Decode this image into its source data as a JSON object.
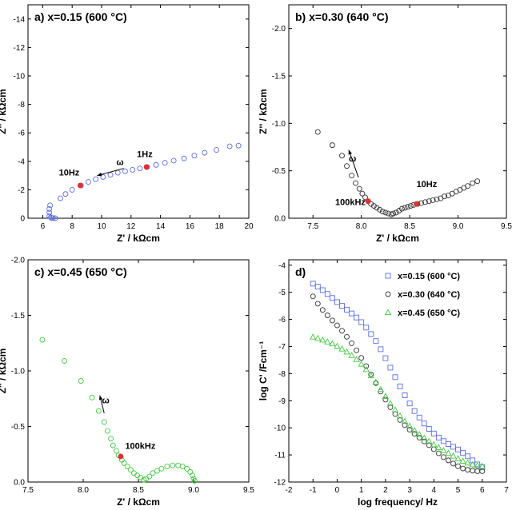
{
  "chart_data": [
    {
      "type": "scatter",
      "id": "a",
      "title": "a) x=0.15  (600 °C)",
      "xlabel": "Z' / kΩcm",
      "ylabel": "Z'' / kΩcm",
      "xlim": [
        5,
        20
      ],
      "ylim": [
        0,
        -15
      ],
      "xticks": [
        6,
        8,
        10,
        12,
        14,
        16,
        18,
        20
      ],
      "yticks": [
        0,
        -2,
        -4,
        -6,
        -8,
        -10,
        -12,
        -14
      ],
      "color": "#5b6ee1",
      "marker": "circle",
      "points": [
        [
          6.45,
          -0.15
        ],
        [
          6.45,
          -0.4
        ],
        [
          6.45,
          -0.65
        ],
        [
          6.5,
          -0.9
        ],
        [
          6.55,
          -0.05
        ],
        [
          6.6,
          -0.02
        ],
        [
          6.7,
          -0.01
        ],
        [
          6.85,
          0.0
        ],
        [
          7.2,
          -1.4
        ],
        [
          7.55,
          -1.7
        ],
        [
          8.0,
          -2.0
        ],
        [
          8.6,
          -2.3
        ],
        [
          9.1,
          -2.55
        ],
        [
          9.6,
          -2.75
        ],
        [
          10.1,
          -2.9
        ],
        [
          10.6,
          -3.05
        ],
        [
          11.1,
          -3.2
        ],
        [
          11.6,
          -3.3
        ],
        [
          12.1,
          -3.4
        ],
        [
          12.6,
          -3.5
        ],
        [
          13.1,
          -3.6
        ],
        [
          13.7,
          -3.75
        ],
        [
          14.3,
          -3.9
        ],
        [
          14.9,
          -4.05
        ],
        [
          15.6,
          -4.2
        ],
        [
          16.3,
          -4.4
        ],
        [
          17.0,
          -4.6
        ],
        [
          17.8,
          -4.8
        ],
        [
          18.7,
          -5.05
        ],
        [
          19.3,
          -5.1
        ]
      ],
      "highlighted": [
        [
          8.55,
          -2.3
        ],
        [
          13.05,
          -3.6
        ]
      ],
      "annotations": [
        {
          "text": "10Hz",
          "x": 7.1,
          "y": -3.0
        },
        {
          "text": "1Hz",
          "x": 12.4,
          "y": -4.3
        },
        {
          "text": "ω",
          "x": 11.0,
          "y": -3.75
        }
      ],
      "arrow": {
        "from": [
          11.5,
          -3.5
        ],
        "to": [
          9.7,
          -3.0
        ]
      }
    },
    {
      "type": "scatter",
      "id": "b",
      "title": "b) x=0.30  (640 °C)",
      "xlabel": "Z' / kΩcm",
      "ylabel": "Z'' / kΩcm",
      "xlim": [
        7.25,
        9.5
      ],
      "ylim": [
        0,
        -2.25
      ],
      "xticks": [
        7.5,
        8.0,
        8.5,
        9.0,
        9.5
      ],
      "xticklabels": [
        "7.5",
        "8.0",
        "8.5",
        "9.0",
        "9.5"
      ],
      "yticks": [
        0.0,
        -0.5,
        -1.0,
        -1.5,
        -2.0
      ],
      "yticklabels": [
        "0.0",
        "-0.5",
        "-1.0",
        "-1.5",
        "-2.0"
      ],
      "color": "#333333",
      "marker": "circle",
      "points": [
        [
          7.55,
          -0.91
        ],
        [
          7.7,
          -0.77
        ],
        [
          7.8,
          -0.66
        ],
        [
          7.85,
          -0.55
        ],
        [
          7.9,
          -0.45
        ],
        [
          7.94,
          -0.37
        ],
        [
          7.98,
          -0.31
        ],
        [
          8.01,
          -0.26
        ],
        [
          8.04,
          -0.22
        ],
        [
          8.07,
          -0.18
        ],
        [
          8.1,
          -0.15
        ],
        [
          8.13,
          -0.13
        ],
        [
          8.16,
          -0.11
        ],
        [
          8.19,
          -0.09
        ],
        [
          8.22,
          -0.07
        ],
        [
          8.25,
          -0.06
        ],
        [
          8.28,
          -0.05
        ],
        [
          8.31,
          -0.04
        ],
        [
          8.33,
          -0.05
        ],
        [
          8.36,
          -0.06
        ],
        [
          8.39,
          -0.08
        ],
        [
          8.42,
          -0.1
        ],
        [
          8.45,
          -0.11
        ],
        [
          8.48,
          -0.12
        ],
        [
          8.51,
          -0.13
        ],
        [
          8.54,
          -0.14
        ],
        [
          8.58,
          -0.15
        ],
        [
          8.62,
          -0.16
        ],
        [
          8.66,
          -0.17
        ],
        [
          8.7,
          -0.18
        ],
        [
          8.74,
          -0.19
        ],
        [
          8.78,
          -0.2
        ],
        [
          8.82,
          -0.21
        ],
        [
          8.86,
          -0.23
        ],
        [
          8.9,
          -0.24
        ],
        [
          8.94,
          -0.26
        ],
        [
          8.98,
          -0.28
        ],
        [
          9.02,
          -0.3
        ],
        [
          9.06,
          -0.32
        ],
        [
          9.1,
          -0.34
        ],
        [
          9.15,
          -0.37
        ],
        [
          9.2,
          -0.39
        ]
      ],
      "highlighted": [
        [
          8.07,
          -0.18
        ],
        [
          8.57,
          -0.15
        ]
      ],
      "annotations": [
        {
          "text": "100kHz",
          "x": 7.73,
          "y": -0.14
        },
        {
          "text": "10Hz",
          "x": 8.57,
          "y": -0.33
        },
        {
          "text": "ω",
          "x": 7.87,
          "y": -0.6
        }
      ],
      "arrow": {
        "from": [
          7.97,
          -0.43
        ],
        "to": [
          7.87,
          -0.72
        ]
      }
    },
    {
      "type": "scatter",
      "id": "c",
      "title": "c) x=0.45  (650 °C)",
      "xlabel": "Z' / kΩcm",
      "ylabel": "Z'' / kΩcm",
      "xlim": [
        7.5,
        9.5
      ],
      "ylim": [
        0,
        -2.0
      ],
      "xticks": [
        7.5,
        8.0,
        8.5,
        9.0,
        9.5
      ],
      "xticklabels": [
        "7.5",
        "8.0",
        "8.5",
        "9.0",
        "9.5"
      ],
      "yticks": [
        0.0,
        -0.5,
        -1.0,
        -1.5,
        -2.0
      ],
      "yticklabels": [
        "0.0",
        "-0.5",
        "-1.0",
        "-1.5",
        "-2.0"
      ],
      "color": "#44c844",
      "marker": "circle",
      "points": [
        [
          7.63,
          -1.28
        ],
        [
          7.83,
          -1.09
        ],
        [
          7.98,
          -0.91
        ],
        [
          8.08,
          -0.76
        ],
        [
          8.14,
          -0.64
        ],
        [
          8.19,
          -0.54
        ],
        [
          8.22,
          -0.46
        ],
        [
          8.25,
          -0.39
        ],
        [
          8.27,
          -0.33
        ],
        [
          8.3,
          -0.28
        ],
        [
          8.32,
          -0.24
        ],
        [
          8.35,
          -0.2
        ],
        [
          8.37,
          -0.17
        ],
        [
          8.4,
          -0.14
        ],
        [
          8.43,
          -0.11
        ],
        [
          8.46,
          -0.08
        ],
        [
          8.49,
          -0.06
        ],
        [
          8.52,
          -0.04
        ],
        [
          8.55,
          -0.02
        ],
        [
          8.57,
          -0.03
        ],
        [
          8.6,
          -0.05
        ],
        [
          8.63,
          -0.08
        ],
        [
          8.67,
          -0.1
        ],
        [
          8.71,
          -0.12
        ],
        [
          8.76,
          -0.14
        ],
        [
          8.81,
          -0.15
        ],
        [
          8.86,
          -0.15
        ],
        [
          8.9,
          -0.14
        ],
        [
          8.94,
          -0.12
        ],
        [
          8.97,
          -0.09
        ],
        [
          8.99,
          -0.06
        ],
        [
          9.0,
          -0.03
        ],
        [
          9.01,
          -0.01
        ]
      ],
      "highlighted": [
        [
          8.34,
          -0.23
        ]
      ],
      "annotations": [
        {
          "text": "100kHz",
          "x": 8.38,
          "y": -0.3
        },
        {
          "text": "ω",
          "x": 8.17,
          "y": -0.71
        }
      ],
      "arrow": {
        "from": [
          8.19,
          -0.62
        ],
        "to": [
          8.15,
          -0.78
        ]
      }
    },
    {
      "type": "scatter",
      "id": "d",
      "title": "d)",
      "xlabel": "log frequency/ Hz",
      "ylabel": "log C' /Fcm⁻¹",
      "xlim": [
        -2,
        7
      ],
      "ylim": [
        -12,
        -3.8
      ],
      "xticks": [
        -2,
        -1,
        0,
        1,
        2,
        3,
        4,
        5,
        6,
        7
      ],
      "yticks": [
        -12,
        -11,
        -10,
        -9,
        -8,
        -7,
        -6,
        -5,
        -4
      ],
      "legend": "top-right",
      "series": [
        {
          "name": "x=0.15 (600 °C)",
          "marker": "square",
          "color": "#5b6ee1",
          "points": [
            [
              -1.0,
              -4.68
            ],
            [
              -0.8,
              -4.79
            ],
            [
              -0.6,
              -4.92
            ],
            [
              -0.4,
              -5.06
            ],
            [
              -0.2,
              -5.21
            ],
            [
              0.0,
              -5.36
            ],
            [
              0.2,
              -5.5
            ],
            [
              0.4,
              -5.64
            ],
            [
              0.6,
              -5.78
            ],
            [
              0.8,
              -5.93
            ],
            [
              1.0,
              -6.1
            ],
            [
              1.2,
              -6.3
            ],
            [
              1.4,
              -6.54
            ],
            [
              1.6,
              -6.8
            ],
            [
              1.8,
              -7.1
            ],
            [
              2.0,
              -7.43
            ],
            [
              2.2,
              -7.78
            ],
            [
              2.4,
              -8.13
            ],
            [
              2.6,
              -8.47
            ],
            [
              2.8,
              -8.8
            ],
            [
              3.0,
              -9.1
            ],
            [
              3.2,
              -9.38
            ],
            [
              3.4,
              -9.62
            ],
            [
              3.6,
              -9.84
            ],
            [
              3.8,
              -10.04
            ],
            [
              4.0,
              -10.21
            ],
            [
              4.2,
              -10.36
            ],
            [
              4.4,
              -10.49
            ],
            [
              4.6,
              -10.6
            ],
            [
              4.8,
              -10.7
            ],
            [
              5.0,
              -10.8
            ],
            [
              5.2,
              -10.92
            ],
            [
              5.4,
              -11.05
            ],
            [
              5.6,
              -11.2
            ],
            [
              5.8,
              -11.35
            ],
            [
              6.0,
              -11.45
            ]
          ]
        },
        {
          "name": "x=0.30 (640 °C)",
          "marker": "circle",
          "color": "#333333",
          "points": [
            [
              -1.0,
              -5.15
            ],
            [
              -0.8,
              -5.42
            ],
            [
              -0.6,
              -5.65
            ],
            [
              -0.4,
              -5.85
            ],
            [
              -0.2,
              -6.04
            ],
            [
              0.0,
              -6.22
            ],
            [
              0.2,
              -6.42
            ],
            [
              0.4,
              -6.64
            ],
            [
              0.6,
              -6.88
            ],
            [
              0.8,
              -7.14
            ],
            [
              1.0,
              -7.42
            ],
            [
              1.2,
              -7.72
            ],
            [
              1.4,
              -8.03
            ],
            [
              1.6,
              -8.35
            ],
            [
              1.8,
              -8.66
            ],
            [
              2.0,
              -8.96
            ],
            [
              2.2,
              -9.24
            ],
            [
              2.4,
              -9.49
            ],
            [
              2.6,
              -9.71
            ],
            [
              2.8,
              -9.9
            ],
            [
              3.0,
              -10.07
            ],
            [
              3.2,
              -10.22
            ],
            [
              3.4,
              -10.36
            ],
            [
              3.6,
              -10.5
            ],
            [
              3.8,
              -10.64
            ],
            [
              4.0,
              -10.79
            ],
            [
              4.2,
              -10.94
            ],
            [
              4.4,
              -11.08
            ],
            [
              4.6,
              -11.2
            ],
            [
              4.8,
              -11.32
            ],
            [
              5.0,
              -11.42
            ],
            [
              5.2,
              -11.5
            ],
            [
              5.4,
              -11.55
            ],
            [
              5.6,
              -11.58
            ],
            [
              5.8,
              -11.6
            ],
            [
              6.0,
              -11.6
            ]
          ]
        },
        {
          "name": "x=0.45 (650 °C)",
          "marker": "triangle",
          "color": "#44c844",
          "points": [
            [
              -1.0,
              -6.65
            ],
            [
              -0.8,
              -6.7
            ],
            [
              -0.6,
              -6.76
            ],
            [
              -0.4,
              -6.83
            ],
            [
              -0.2,
              -6.9
            ],
            [
              0.0,
              -6.99
            ],
            [
              0.2,
              -7.09
            ],
            [
              0.4,
              -7.2
            ],
            [
              0.6,
              -7.33
            ],
            [
              0.8,
              -7.48
            ],
            [
              1.0,
              -7.65
            ],
            [
              1.2,
              -7.85
            ],
            [
              1.4,
              -8.08
            ],
            [
              1.6,
              -8.32
            ],
            [
              1.8,
              -8.58
            ],
            [
              2.0,
              -8.84
            ],
            [
              2.2,
              -9.1
            ],
            [
              2.4,
              -9.34
            ],
            [
              2.6,
              -9.56
            ],
            [
              2.8,
              -9.76
            ],
            [
              3.0,
              -9.94
            ],
            [
              3.2,
              -10.1
            ],
            [
              3.4,
              -10.25
            ],
            [
              3.6,
              -10.38
            ],
            [
              3.8,
              -10.5
            ],
            [
              4.0,
              -10.62
            ],
            [
              4.2,
              -10.73
            ],
            [
              4.4,
              -10.84
            ],
            [
              4.6,
              -10.94
            ],
            [
              4.8,
              -11.04
            ],
            [
              5.0,
              -11.14
            ],
            [
              5.2,
              -11.23
            ],
            [
              5.4,
              -11.3
            ],
            [
              5.6,
              -11.36
            ],
            [
              5.8,
              -11.4
            ],
            [
              6.0,
              -11.42
            ]
          ]
        }
      ]
    }
  ],
  "highlight_color": "#e03030"
}
